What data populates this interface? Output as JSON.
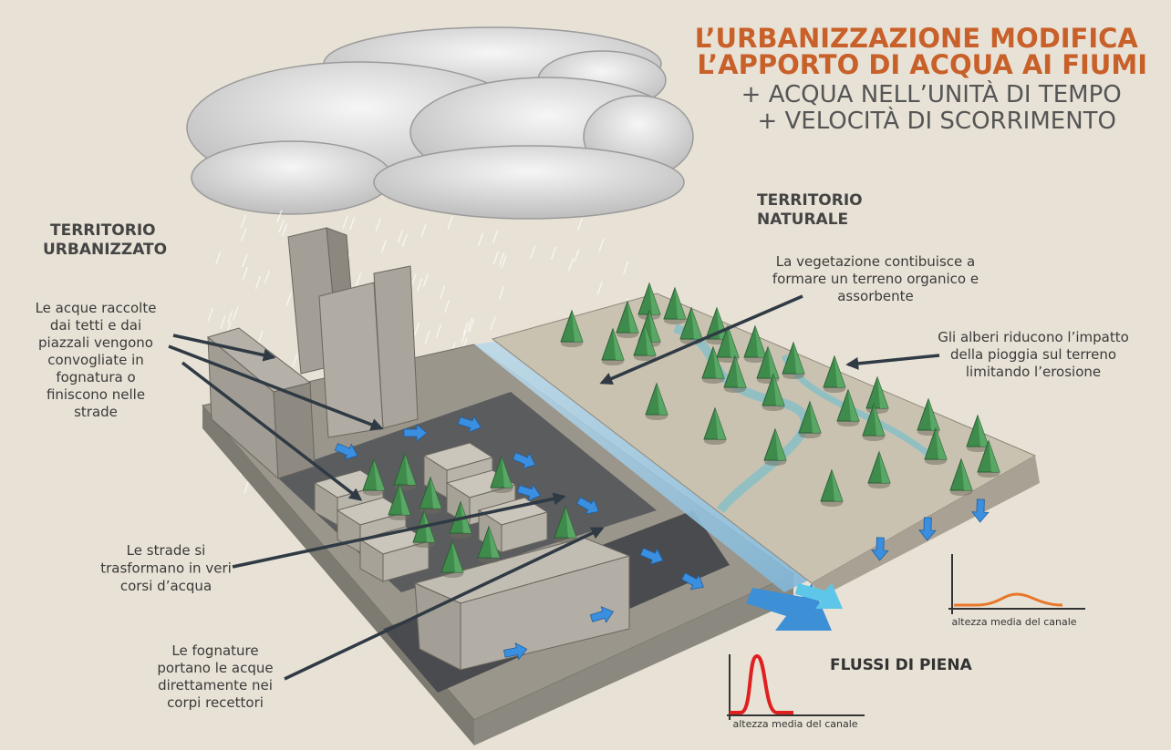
{
  "title": {
    "lines": [
      "L’URBANIZZAZIONE MODIFICA",
      "L’APPORTO DI ACQUA AI FIUMI"
    ]
  },
  "subtitle": {
    "lines": [
      "+ ACQUA NELL’UNITÀ DI TEMPO",
      "+ VELOCITÀ DI SCORRIMENTO"
    ]
  },
  "regions": [
    {
      "lines": [
        "TERRITORIO",
        "URBANIZZATO"
      ]
    },
    {
      "lines": [
        "TERRITORIO",
        "NATURALE"
      ]
    }
  ],
  "annotations": [
    {
      "lines": [
        "Le acque raccolte",
        "dai tetti e dai",
        "piazzali vengono",
        "convogliate in",
        "fognatura o",
        "finiscono nelle",
        "strade"
      ]
    },
    {
      "lines": [
        "Le strade si",
        "trasformano in veri",
        "corsi d’acqua"
      ]
    },
    {
      "lines": [
        "Le fognature",
        "portano le acque",
        "direttamente nei",
        "corpi recettori"
      ]
    },
    {
      "lines": [
        "La vegetazione contibuisce a",
        "formare un terreno organico e",
        "assorbente"
      ]
    },
    {
      "lines": [
        "Gli alberi riducono l’impatto",
        "della pioggia sul terreno",
        "limitando l’erosione"
      ]
    }
  ],
  "flood_label": "FLUSSI DI PIENA",
  "graphs": [
    {
      "axis_label": "altezza media del canale"
    },
    {
      "axis_label": "altezza media del canale"
    }
  ]
}
